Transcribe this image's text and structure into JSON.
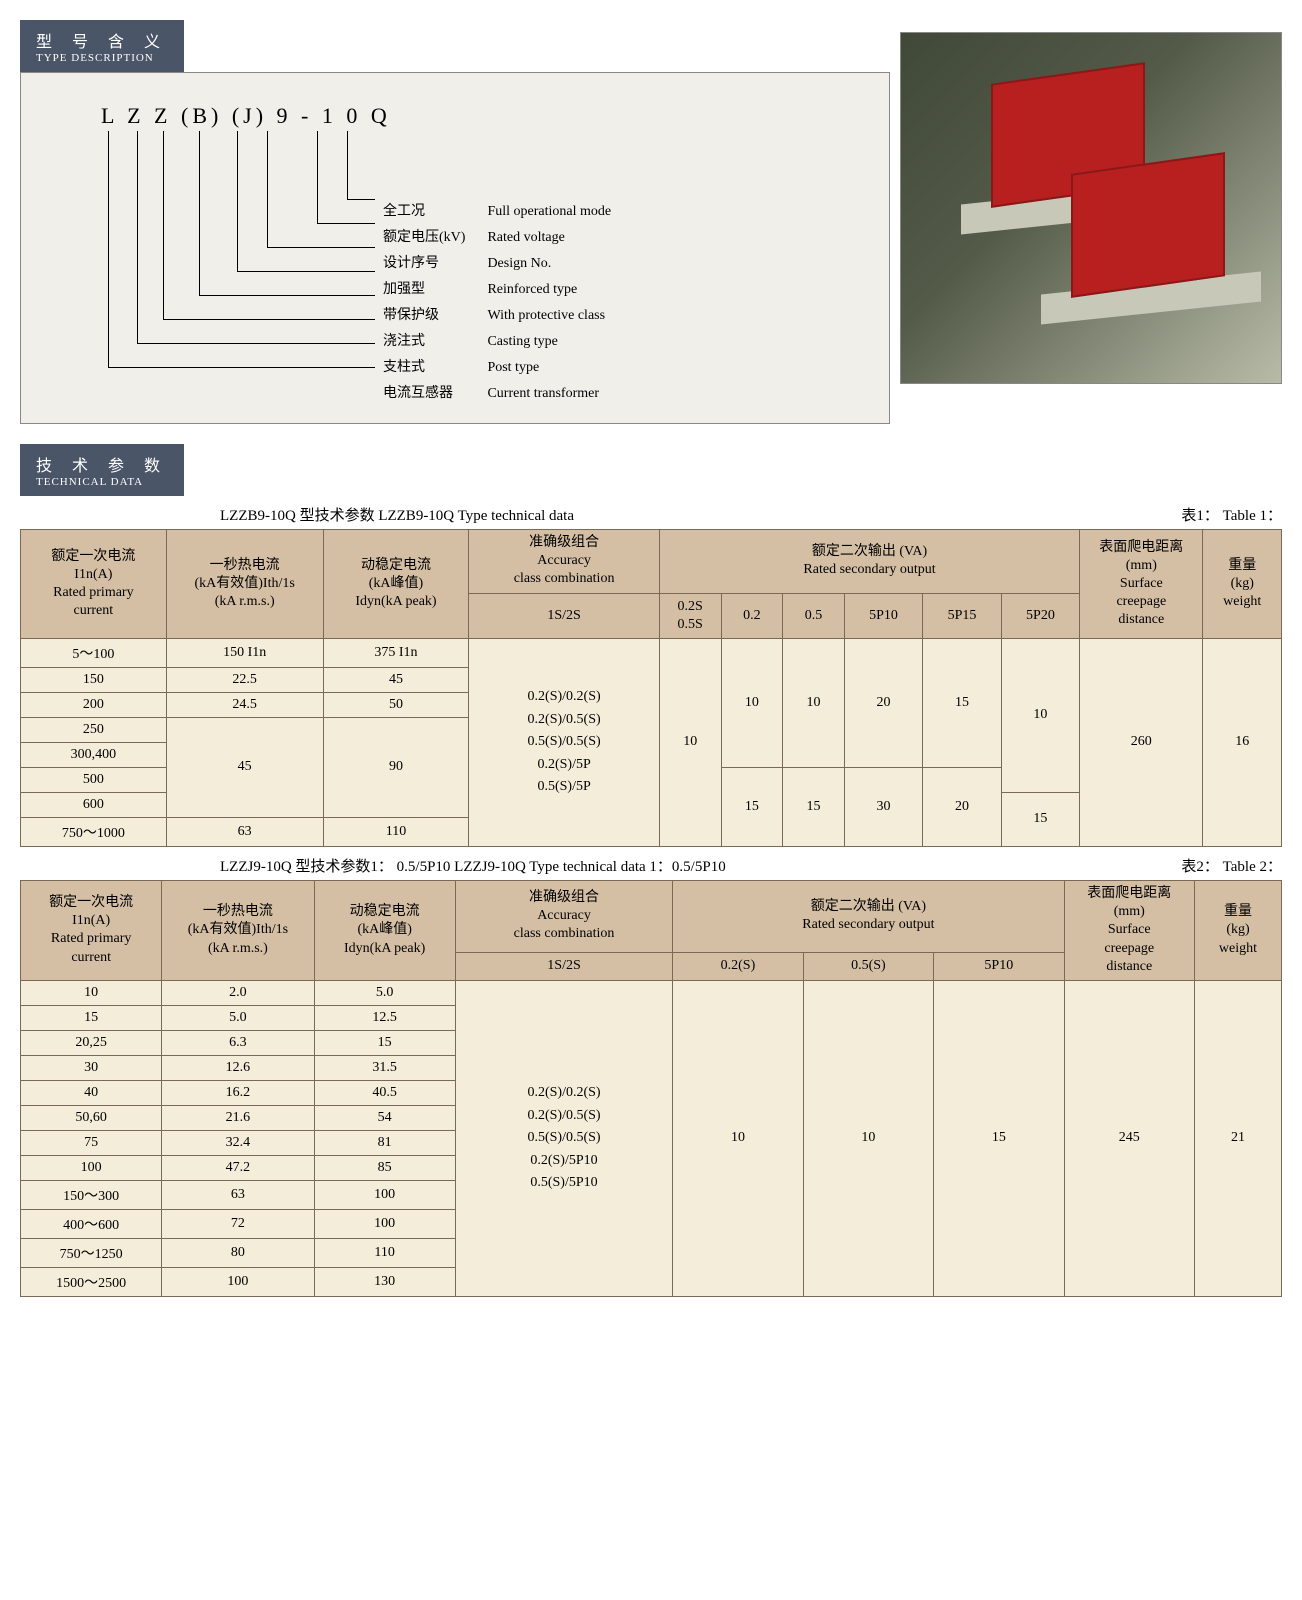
{
  "header1": {
    "cn": "型 号 含 义",
    "en": "TYPE DESCRIPTION"
  },
  "header2": {
    "cn": "技 术 参 数",
    "en": "TECHNICAL DATA"
  },
  "typecode": "L  Z  Z  (B) (J)  9  - 1 0  Q",
  "legend": [
    {
      "cn": "全工况",
      "en": "Full operational mode"
    },
    {
      "cn": "额定电压(kV)",
      "en": "Rated voltage"
    },
    {
      "cn": "设计序号",
      "en": "Design No."
    },
    {
      "cn": "加强型",
      "en": "Reinforced type"
    },
    {
      "cn": "带保护级",
      "en": "With protective class"
    },
    {
      "cn": "浇注式",
      "en": "Casting type"
    },
    {
      "cn": "支柱式",
      "en": "Post type"
    },
    {
      "cn": "电流互感器",
      "en": "Current transformer"
    }
  ],
  "t1": {
    "title_left": "LZZB9-10Q   型技术参数   LZZB9-10Q Type technical data",
    "title_right": "表1： Table 1：",
    "hdr": {
      "c1": "额定一次电流\nI1n(A)\nRated primary\ncurrent",
      "c2": "一秒热电流\n(kA有效值)Ith/1s\n(kA r.m.s.)",
      "c3": "动稳定电流\n(kA峰值)\nIdyn(kA peak)",
      "c4": "准确级组合\nAccuracy\nclass combination",
      "c4s": "1S/2S",
      "c5": "额定二次输出 (VA)\nRated secondary output",
      "c5a": "0.2S\n0.5S",
      "c5b": "0.2",
      "c5c": "0.5",
      "c5d": "5P10",
      "c5e": "5P15",
      "c5f": "5P20",
      "c6": "表面爬电距离\n(mm)\nSurface\ncreepage\ndistance",
      "c7": "重量\n(kg)\nweight"
    },
    "rows_abc": [
      [
        "5～100",
        "150 I1n",
        "375 I1n"
      ],
      [
        "150",
        "22.5",
        "45"
      ],
      [
        "200",
        "24.5",
        "50"
      ],
      [
        "250",
        "",
        ""
      ],
      [
        "300,400",
        "45",
        "90"
      ],
      [
        "500",
        "",
        ""
      ],
      [
        "600",
        "",
        ""
      ],
      [
        "750～1000",
        "63",
        "110"
      ]
    ],
    "acc": "0.2(S)/0.2(S)\n0.2(S)/0.5(S)\n0.5(S)/0.5(S)\n0.2(S)/5P\n0.5(S)/5P",
    "v_1s2s": "10",
    "grpA": {
      "c5b": "10",
      "c5c": "10",
      "c5d": "20",
      "c5e": "15"
    },
    "grpB": {
      "c5b": "15",
      "c5c": "15",
      "c5d": "30",
      "c5e": "20"
    },
    "c5f_top": "10",
    "c5f_bot": "15",
    "creep": "260",
    "weight": "16"
  },
  "t2": {
    "title_left": "LZZJ9-10Q 型技术参数1： 0.5/5P10    LZZJ9-10Q Type technical data 1：0.5/5P10",
    "title_right": "表2： Table 2：",
    "hdr": {
      "c1": "额定一次电流\nI1n(A)\nRated primary\ncurrent",
      "c2": "一秒热电流\n(kA有效值)Ith/1s\n(kA r.m.s.)",
      "c3": "动稳定电流\n(kA峰值)\nIdyn(kA peak)",
      "c4": "准确级组合\nAccuracy\nclass combination",
      "c4s": "1S/2S",
      "c5": "额定二次输出 (VA)\nRated secondary output",
      "c5a": "0.2(S)",
      "c5b": "0.5(S)",
      "c5c": "5P10",
      "c6": "表面爬电距离\n(mm)\nSurface\ncreepage\ndistance",
      "c7": "重量\n(kg)\nweight"
    },
    "rows_abc": [
      [
        "10",
        "2.0",
        "5.0"
      ],
      [
        "15",
        "5.0",
        "12.5"
      ],
      [
        "20,25",
        "6.3",
        "15"
      ],
      [
        "30",
        "12.6",
        "31.5"
      ],
      [
        "40",
        "16.2",
        "40.5"
      ],
      [
        "50,60",
        "21.6",
        "54"
      ],
      [
        "75",
        "32.4",
        "81"
      ],
      [
        "100",
        "47.2",
        "85"
      ],
      [
        "150～300",
        "63",
        "100"
      ],
      [
        "400～600",
        "72",
        "100"
      ],
      [
        "750～1250",
        "80",
        "110"
      ],
      [
        "1500～2500",
        "100",
        "130"
      ]
    ],
    "acc": "0.2(S)/0.2(S)\n0.2(S)/0.5(S)\n0.5(S)/0.5(S)\n0.2(S)/5P10\n0.5(S)/5P10",
    "v02": "10",
    "v05": "10",
    "v5p": "15",
    "creep": "245",
    "weight": "21"
  }
}
